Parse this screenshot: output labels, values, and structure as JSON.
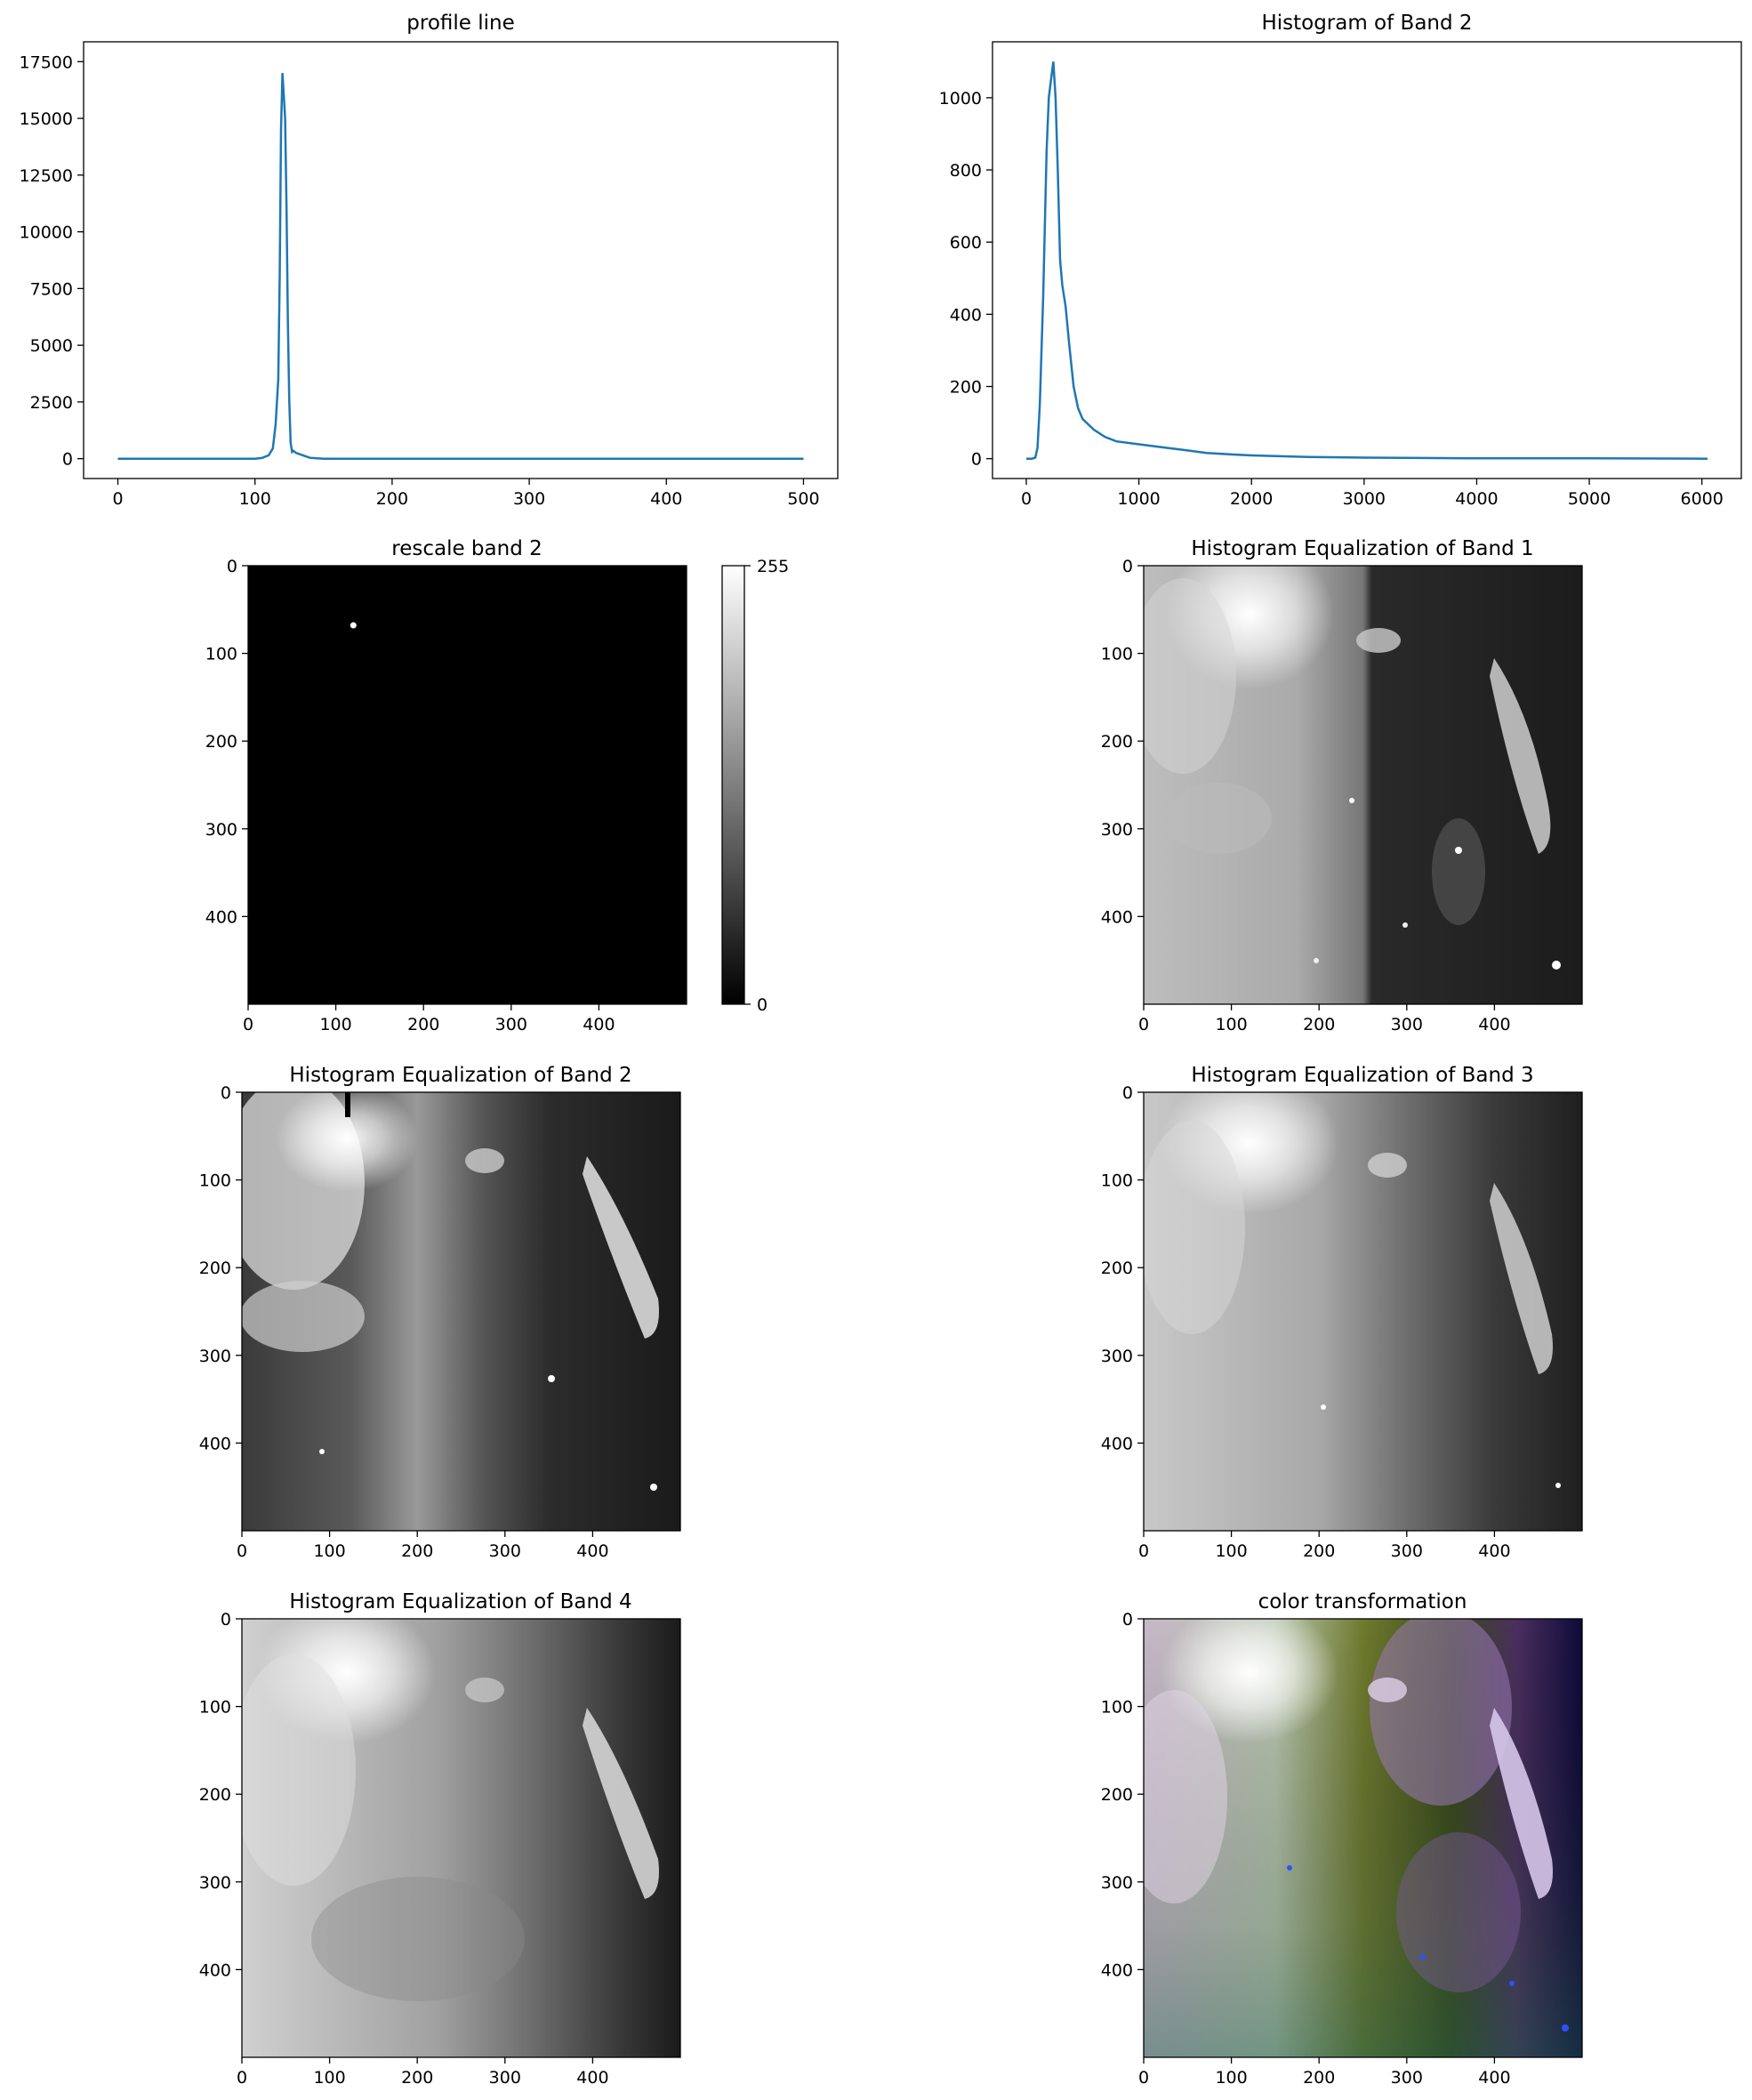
{
  "chart_data": [
    {
      "id": "profile",
      "type": "line",
      "title": "profile line",
      "xlabel": "",
      "ylabel": "",
      "xlim": [
        -25,
        525
      ],
      "ylim": [
        -875,
        18375
      ],
      "xticks": [
        0,
        100,
        200,
        300,
        400,
        500
      ],
      "yticks": [
        0,
        2500,
        5000,
        7500,
        10000,
        12500,
        15000,
        17500
      ],
      "color": "#1f77b4",
      "x": [
        0,
        100,
        105,
        110,
        113,
        115,
        117,
        118,
        119,
        120,
        121,
        122,
        123,
        124,
        125,
        126,
        127,
        128,
        130,
        135,
        140,
        150,
        200,
        300,
        400,
        500
      ],
      "y": [
        0,
        0,
        30,
        150,
        450,
        1500,
        3500,
        8000,
        14500,
        17000,
        16000,
        15000,
        11000,
        6000,
        2500,
        700,
        300,
        350,
        250,
        150,
        40,
        0,
        0,
        0,
        0,
        0
      ]
    },
    {
      "id": "hist2",
      "type": "line",
      "title": "Histogram of Band 2",
      "xlabel": "",
      "ylabel": "",
      "xlim": [
        -300,
        6350
      ],
      "ylim": [
        -55,
        1155
      ],
      "xticks": [
        0,
        1000,
        2000,
        3000,
        4000,
        5000,
        6000
      ],
      "yticks": [
        0,
        200,
        400,
        600,
        800,
        1000
      ],
      "color": "#1f77b4",
      "x": [
        0,
        50,
        80,
        100,
        120,
        150,
        180,
        200,
        220,
        240,
        260,
        280,
        300,
        320,
        350,
        380,
        420,
        460,
        500,
        600,
        700,
        800,
        1000,
        1200,
        1400,
        1600,
        1800,
        2000,
        2500,
        3000,
        3500,
        4000,
        5000,
        6050
      ],
      "y": [
        0,
        0,
        3,
        30,
        150,
        450,
        850,
        1000,
        1050,
        1100,
        1000,
        800,
        550,
        480,
        420,
        320,
        200,
        140,
        110,
        80,
        60,
        48,
        40,
        32,
        24,
        16,
        12,
        9,
        5,
        3,
        2,
        1,
        1,
        0
      ]
    },
    {
      "id": "rescale2",
      "type": "heatmap",
      "title": "rescale band 2",
      "xticks": [
        0,
        100,
        200,
        300,
        400
      ],
      "yticks": [
        0,
        100,
        200,
        300,
        400
      ],
      "extent": [
        0,
        500
      ],
      "colorbar": {
        "min_label": "0",
        "max_label": "255"
      },
      "bright_spot": {
        "x": 120,
        "y": 68
      }
    },
    {
      "id": "eq1",
      "type": "heatmap",
      "title": "Histogram Equalization of Band 1",
      "xticks": [
        0,
        100,
        200,
        300,
        400
      ],
      "yticks": [
        0,
        100,
        200,
        300,
        400
      ],
      "extent": [
        0,
        500
      ]
    },
    {
      "id": "eq2",
      "type": "heatmap",
      "title": "Histogram Equalization of Band 2",
      "xticks": [
        0,
        100,
        200,
        300,
        400
      ],
      "yticks": [
        0,
        100,
        200,
        300,
        400
      ],
      "extent": [
        0,
        500
      ]
    },
    {
      "id": "eq3",
      "type": "heatmap",
      "title": "Histogram Equalization of Band 3",
      "xticks": [
        0,
        100,
        200,
        300,
        400
      ],
      "yticks": [
        0,
        100,
        200,
        300,
        400
      ],
      "extent": [
        0,
        500
      ]
    },
    {
      "id": "eq4",
      "type": "heatmap",
      "title": "Histogram Equalization of Band 4",
      "xticks": [
        0,
        100,
        200,
        300,
        400
      ],
      "yticks": [
        0,
        100,
        200,
        300,
        400
      ],
      "extent": [
        0,
        500
      ]
    },
    {
      "id": "color",
      "type": "heatmap",
      "title": "color transformation",
      "xticks": [
        0,
        100,
        200,
        300,
        400
      ],
      "yticks": [
        0,
        100,
        200,
        300,
        400
      ],
      "extent": [
        0,
        500
      ]
    }
  ]
}
